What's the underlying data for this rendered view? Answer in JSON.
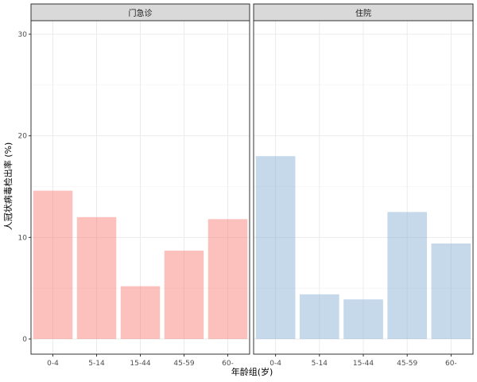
{
  "chart_data": {
    "type": "bar",
    "xlabel": "年龄组(岁)",
    "ylabel": "人冠状病毒检出率 (%)",
    "categories": [
      "0-4",
      "5-14",
      "15-44",
      "45-59",
      "60-"
    ],
    "ylim": [
      0,
      30
    ],
    "yticks": [
      0,
      10,
      20,
      30
    ],
    "grid": true,
    "legend": "none",
    "panels": [
      {
        "title": "门急诊",
        "color": "#f8766d",
        "values": [
          14.6,
          12.0,
          5.2,
          8.7,
          11.8
        ]
      },
      {
        "title": "住院",
        "color": "#7fabd2",
        "values": [
          18.0,
          4.4,
          3.9,
          12.5,
          9.4
        ]
      }
    ]
  }
}
